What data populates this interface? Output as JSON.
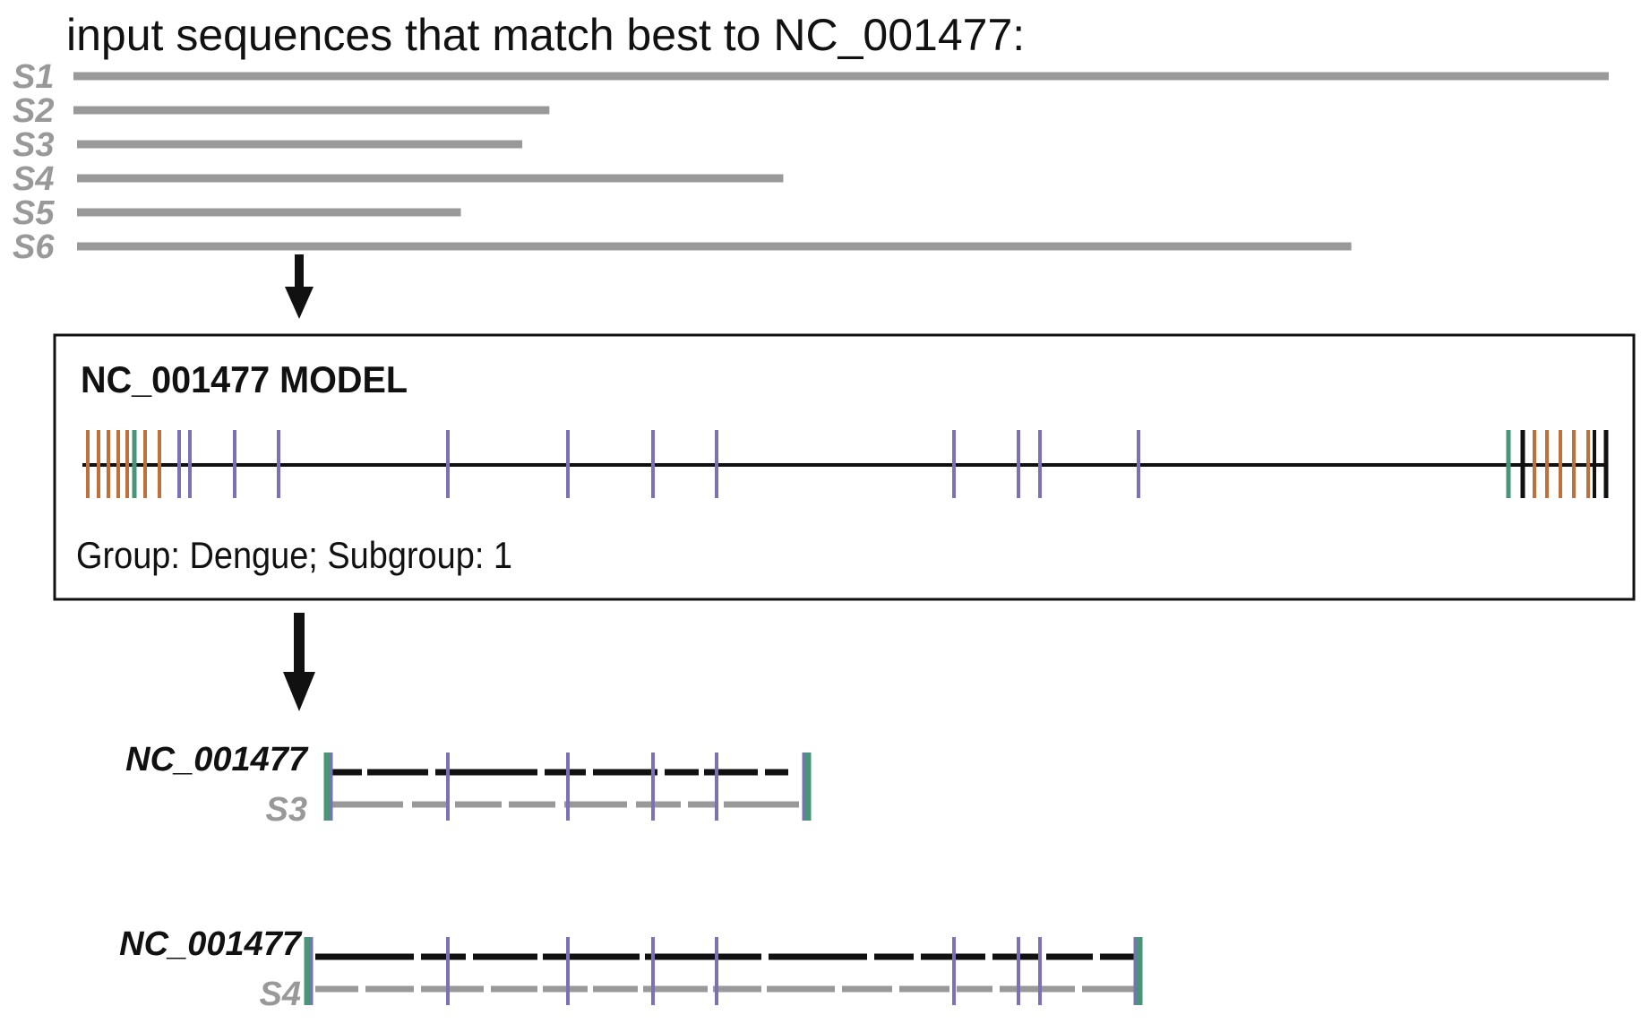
{
  "header": "input sequences that match best to NC_001477:",
  "colors": {
    "sequence_gray": "#999999",
    "reference_black": "#111111",
    "feature_purple": "#7a72b4",
    "feature_orange": "#c0703a",
    "feature_green": "#4a9478"
  },
  "input_sequences": [
    {
      "label": "S1",
      "relative_length": 1.0
    },
    {
      "label": "S2",
      "relative_length": 0.31
    },
    {
      "label": "S3",
      "relative_length": 0.29
    },
    {
      "label": "S4",
      "relative_length": 0.46
    },
    {
      "label": "S5",
      "relative_length": 0.25
    },
    {
      "label": "S6",
      "relative_length": 0.83
    }
  ],
  "model": {
    "title": "NC_001477 MODEL",
    "group_text": "Group: Dengue; Subgroup: 1"
  },
  "alignments": [
    {
      "reference_label": "NC_001477",
      "query_label": "S3"
    },
    {
      "reference_label": "NC_001477",
      "query_label": "S4"
    }
  ]
}
